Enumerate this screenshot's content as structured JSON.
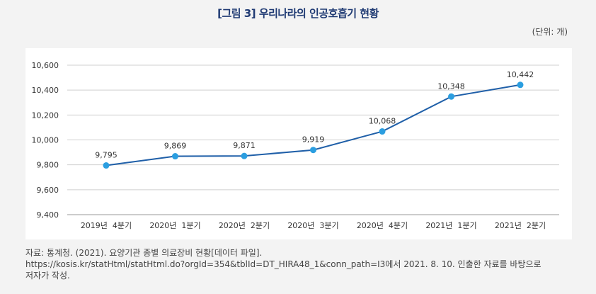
{
  "title": "[그림 3] 우리나라의 인공호흡기 현황",
  "unit_label": "(단위: 개)",
  "chart_data": {
    "type": "line",
    "title": "[그림 3] 우리나라의 인공호흡기 현황",
    "xlabel": "",
    "ylabel": "",
    "categories": [
      "2019년  4분기",
      "2020년  1분기",
      "2020년  2분기",
      "2020년  3분기",
      "2020년  4분기",
      "2021년  1분기",
      "2021년  2분기"
    ],
    "series": [
      {
        "values": [
          9795,
          9869,
          9871,
          9919,
          10068,
          10348,
          10442
        ],
        "data_labels": [
          "9,795",
          "9,869",
          "9,871",
          "9,919",
          "10,068",
          "10,348",
          "10,442"
        ]
      }
    ],
    "ylim": [
      9400,
      10600
    ],
    "yticks": [
      10600,
      10400,
      10200,
      10000,
      9800,
      9600,
      9400
    ],
    "ytick_labels": [
      "10,600",
      "10,400",
      "10,200",
      "10,000",
      "9,800",
      "9,600",
      "9,400"
    ],
    "grid": true,
    "legend": "none",
    "line_color": "#1f5fa8",
    "marker_color": "#2b9ee0",
    "grid_color": "#cfcfcf"
  },
  "source": {
    "line1": "자료: 통계청. (2021). 요양기관 종별 의료장비 현황[데이터 파일].",
    "line2": "https://kosis.kr/statHtml/statHtml.do?orgId=354&tblId=DT_HIRA48_1&conn_path=I3에서 2021. 8. 10. 인출한 자료를 바탕으로",
    "line3": "저자가 작성."
  }
}
